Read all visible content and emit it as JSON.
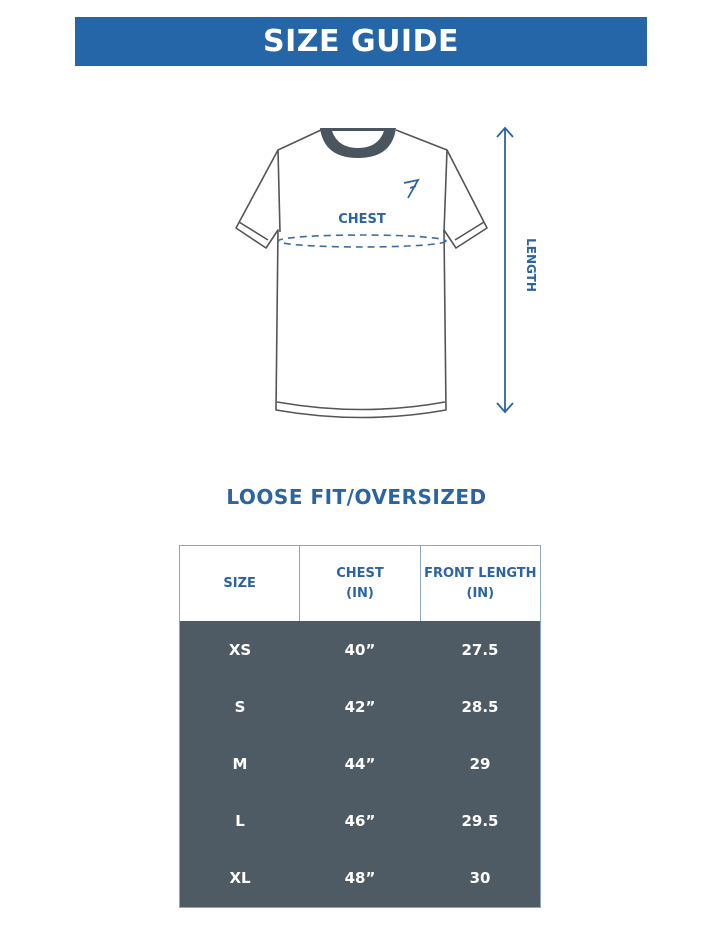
{
  "title": "SIZE GUIDE",
  "diagram": {
    "chest_label": "CHEST",
    "length_label": "LENGTH"
  },
  "fit_label": "LOOSE FIT/OVERSIZED",
  "table": {
    "headers": [
      "SIZE",
      "CHEST\n(IN)",
      "FRONT LENGTH\n(IN)"
    ],
    "rows": [
      [
        "XS",
        "40”",
        "27.5"
      ],
      [
        "S",
        "42”",
        "28.5"
      ],
      [
        "M",
        "44”",
        "29"
      ],
      [
        "L",
        "46”",
        "29.5"
      ],
      [
        "XL",
        "48”",
        "30"
      ]
    ]
  },
  "colors": {
    "brand_blue": "#2566a8",
    "table_body": "#4f5b64",
    "collar": "#4b5560"
  }
}
